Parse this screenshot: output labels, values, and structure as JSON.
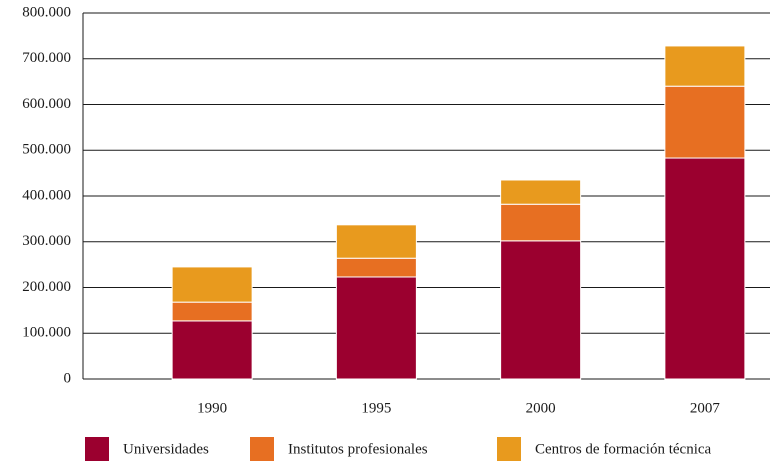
{
  "chart_data": {
    "type": "stacked_bar",
    "categories": [
      "1990",
      "1995",
      "2000",
      "2007"
    ],
    "series": [
      {
        "name": "Universidades",
        "color": "#9b002f",
        "values": [
          127000,
          223000,
          302000,
          483000
        ]
      },
      {
        "name": "Institutos profesionales",
        "color": "#e76f22",
        "values": [
          41000,
          41000,
          80000,
          157000
        ]
      },
      {
        "name": "Centros de formación técnica",
        "color": "#e89a1e",
        "values": [
          77000,
          73000,
          53000,
          88000
        ]
      }
    ],
    "ylim": [
      0,
      800000
    ],
    "yticks": [
      0,
      {
        "value": 100000,
        "label": "100.000"
      },
      {
        "value": 200000,
        "label": "200.000"
      },
      {
        "value": 300000,
        "label": "300.000"
      },
      {
        "value": 400000,
        "label": "400.000"
      },
      {
        "value": 500000,
        "label": "500.000"
      },
      {
        "value": 600000,
        "label": "600.000"
      },
      {
        "value": 700000,
        "label": "700.000"
      },
      {
        "value": 800000,
        "label": "800.000"
      }
    ],
    "grid": true,
    "legend": "bottom"
  }
}
